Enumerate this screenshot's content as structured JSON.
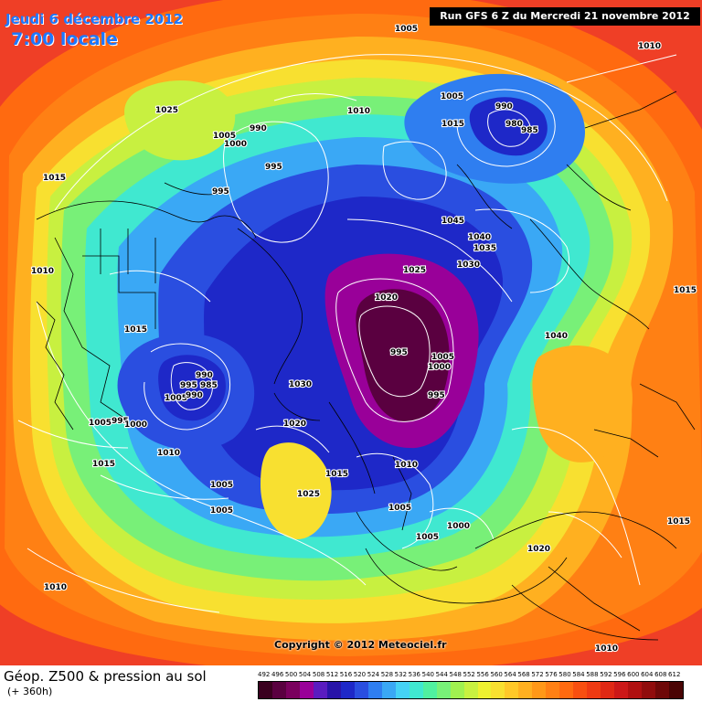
{
  "header": {
    "date_label": "Jeudi 6 décembre 2012",
    "time_label": "7:00 locale",
    "run_label": "Run GFS 6 Z du Mercredi 21 novembre 2012"
  },
  "copyright": "Copyright © 2012 Meteociel.fr",
  "footer": {
    "field_title": "Géop. Z500 & pression au sol",
    "lead_time": "(+ 360h)"
  },
  "legend_scale": {
    "values": [
      "492",
      "496",
      "500",
      "504",
      "508",
      "512",
      "516",
      "520",
      "524",
      "528",
      "532",
      "536",
      "540",
      "544",
      "548",
      "552",
      "556",
      "560",
      "564",
      "568",
      "572",
      "576",
      "580",
      "584",
      "588",
      "592",
      "596",
      "600",
      "604",
      "608",
      "612"
    ],
    "colors": [
      "#3a001f",
      "#5a0040",
      "#7a005e",
      "#990099",
      "#5a1cc0",
      "#2814a8",
      "#1e28c8",
      "#2a4ee0",
      "#2f7ef0",
      "#3aa8f5",
      "#45d2f5",
      "#40e8d0",
      "#50f0a0",
      "#78f078",
      "#a0f050",
      "#c8f040",
      "#eef030",
      "#f8e030",
      "#ffc828",
      "#ffb020",
      "#ff9818",
      "#ff8014",
      "#ff6a10",
      "#f84f10",
      "#ef3a12",
      "#e02814",
      "#cc1818",
      "#b01010",
      "#900c0c",
      "#6e0808",
      "#4a0404"
    ]
  },
  "map": {
    "background_color": "#ef3f26",
    "pressure_labels": [
      {
        "text": "1005"
      },
      {
        "text": "1010"
      },
      {
        "text": "990"
      },
      {
        "text": "980"
      },
      {
        "text": "985"
      },
      {
        "text": "1025"
      },
      {
        "text": "1005"
      },
      {
        "text": "1010"
      },
      {
        "text": "1015"
      },
      {
        "text": "990"
      },
      {
        "text": "1005"
      },
      {
        "text": "1000"
      },
      {
        "text": "995"
      },
      {
        "text": "1015"
      },
      {
        "text": "995"
      },
      {
        "text": "1045"
      },
      {
        "text": "1040"
      },
      {
        "text": "1035"
      },
      {
        "text": "1010"
      },
      {
        "text": "1025"
      },
      {
        "text": "1030"
      },
      {
        "text": "1020"
      },
      {
        "text": "1015"
      },
      {
        "text": "1040"
      },
      {
        "text": "995"
      },
      {
        "text": "1005"
      },
      {
        "text": "1000"
      },
      {
        "text": "995"
      },
      {
        "text": "1015"
      },
      {
        "text": "990"
      },
      {
        "text": "995"
      },
      {
        "text": "985"
      },
      {
        "text": "1005"
      },
      {
        "text": "990"
      },
      {
        "text": "1030"
      },
      {
        "text": "1005"
      },
      {
        "text": "995"
      },
      {
        "text": "1000"
      },
      {
        "text": "1020"
      },
      {
        "text": "1010"
      },
      {
        "text": "1015"
      },
      {
        "text": "1010"
      },
      {
        "text": "1005"
      },
      {
        "text": "1025"
      },
      {
        "text": "1015"
      },
      {
        "text": "1005"
      },
      {
        "text": "1005"
      },
      {
        "text": "1005"
      },
      {
        "text": "1000"
      },
      {
        "text": "1020"
      },
      {
        "text": "1015"
      },
      {
        "text": "1010"
      },
      {
        "text": "1010"
      }
    ]
  }
}
